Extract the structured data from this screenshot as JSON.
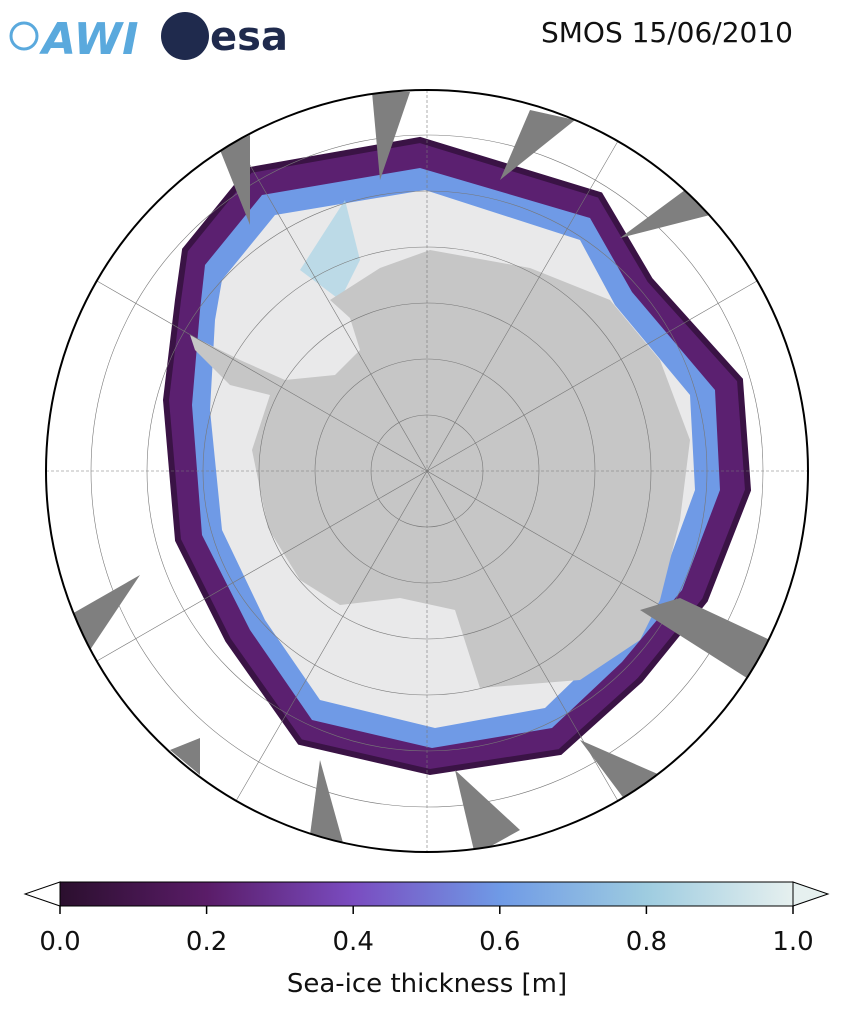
{
  "logos": [
    "AWI",
    "esa"
  ],
  "title": "SMOS 15/06/2010",
  "colorbar": {
    "label": "Sea-ice thickness [m]",
    "lim": [
      0,
      1
    ],
    "ticks": [
      {
        "value": 0,
        "label": "0.0"
      },
      {
        "value": 0.2,
        "label": "0.2"
      },
      {
        "value": 0.4,
        "label": "0.4"
      },
      {
        "value": 0.6,
        "label": "0.6"
      },
      {
        "value": 0.8,
        "label": "0.8"
      },
      {
        "value": 1,
        "label": "1.0"
      }
    ],
    "colors": [
      "#2b0f2e",
      "#5a1c68",
      "#7a4cc0",
      "#6f9ae6",
      "#9ecce0",
      "#e6f0ef"
    ]
  }
}
